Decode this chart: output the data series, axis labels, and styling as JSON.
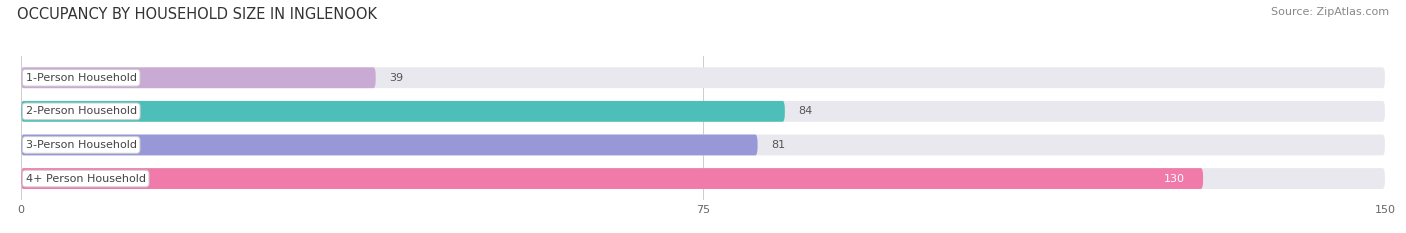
{
  "title": "OCCUPANCY BY HOUSEHOLD SIZE IN INGLENOOK",
  "source": "Source: ZipAtlas.com",
  "categories": [
    "1-Person Household",
    "2-Person Household",
    "3-Person Household",
    "4+ Person Household"
  ],
  "values": [
    39,
    84,
    81,
    130
  ],
  "bar_colors": [
    "#c9aad4",
    "#4dbfb8",
    "#9898d8",
    "#f07aaa"
  ],
  "xlim": [
    0,
    150
  ],
  "xticks": [
    0,
    75,
    150
  ],
  "background_color": "#ffffff",
  "bar_background_color": "#e8e8ee",
  "title_fontsize": 10.5,
  "source_fontsize": 8,
  "label_fontsize": 8,
  "value_fontsize": 8,
  "bar_height": 0.62
}
